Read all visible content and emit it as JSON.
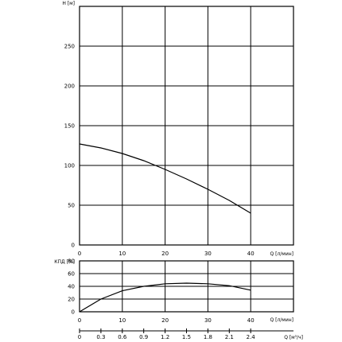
{
  "chart_data": [
    {
      "type": "line",
      "ylabel": "H [м]",
      "xlabel": "Q [л/мин]",
      "xlim": [
        0,
        50
      ],
      "ylim": [
        0,
        300
      ],
      "x_ticks": [
        "0",
        "10",
        "20",
        "30",
        "40"
      ],
      "y_ticks": [
        "0",
        "50",
        "100",
        "150",
        "200",
        "250"
      ],
      "grid": true,
      "series": [
        {
          "x": [
            0,
            5,
            10,
            15,
            20,
            25,
            30,
            35,
            40
          ],
          "y": [
            127,
            122,
            115,
            106,
            95,
            83,
            70,
            56,
            40
          ]
        }
      ]
    },
    {
      "type": "line",
      "ylabel": "КПД [%]",
      "xlabel": "Q [л/мин]",
      "xlim": [
        0,
        50
      ],
      "ylim": [
        0,
        80
      ],
      "x_ticks": [
        "0",
        "10",
        "20",
        "30",
        "40"
      ],
      "y_ticks": [
        "0",
        "20",
        "40",
        "60",
        "80"
      ],
      "grid": true,
      "series": [
        {
          "x": [
            0,
            5,
            10,
            15,
            20,
            25,
            30,
            35,
            40
          ],
          "y": [
            0,
            20,
            33,
            40,
            44,
            45,
            44,
            41,
            34
          ]
        }
      ]
    }
  ],
  "secondary_axis": {
    "label": "Q [м³/ч]",
    "ticks": [
      "0",
      "0.3",
      "0.6",
      "0.9",
      "1.2",
      "1.5",
      "1.8",
      "2.1",
      "2.4"
    ]
  }
}
